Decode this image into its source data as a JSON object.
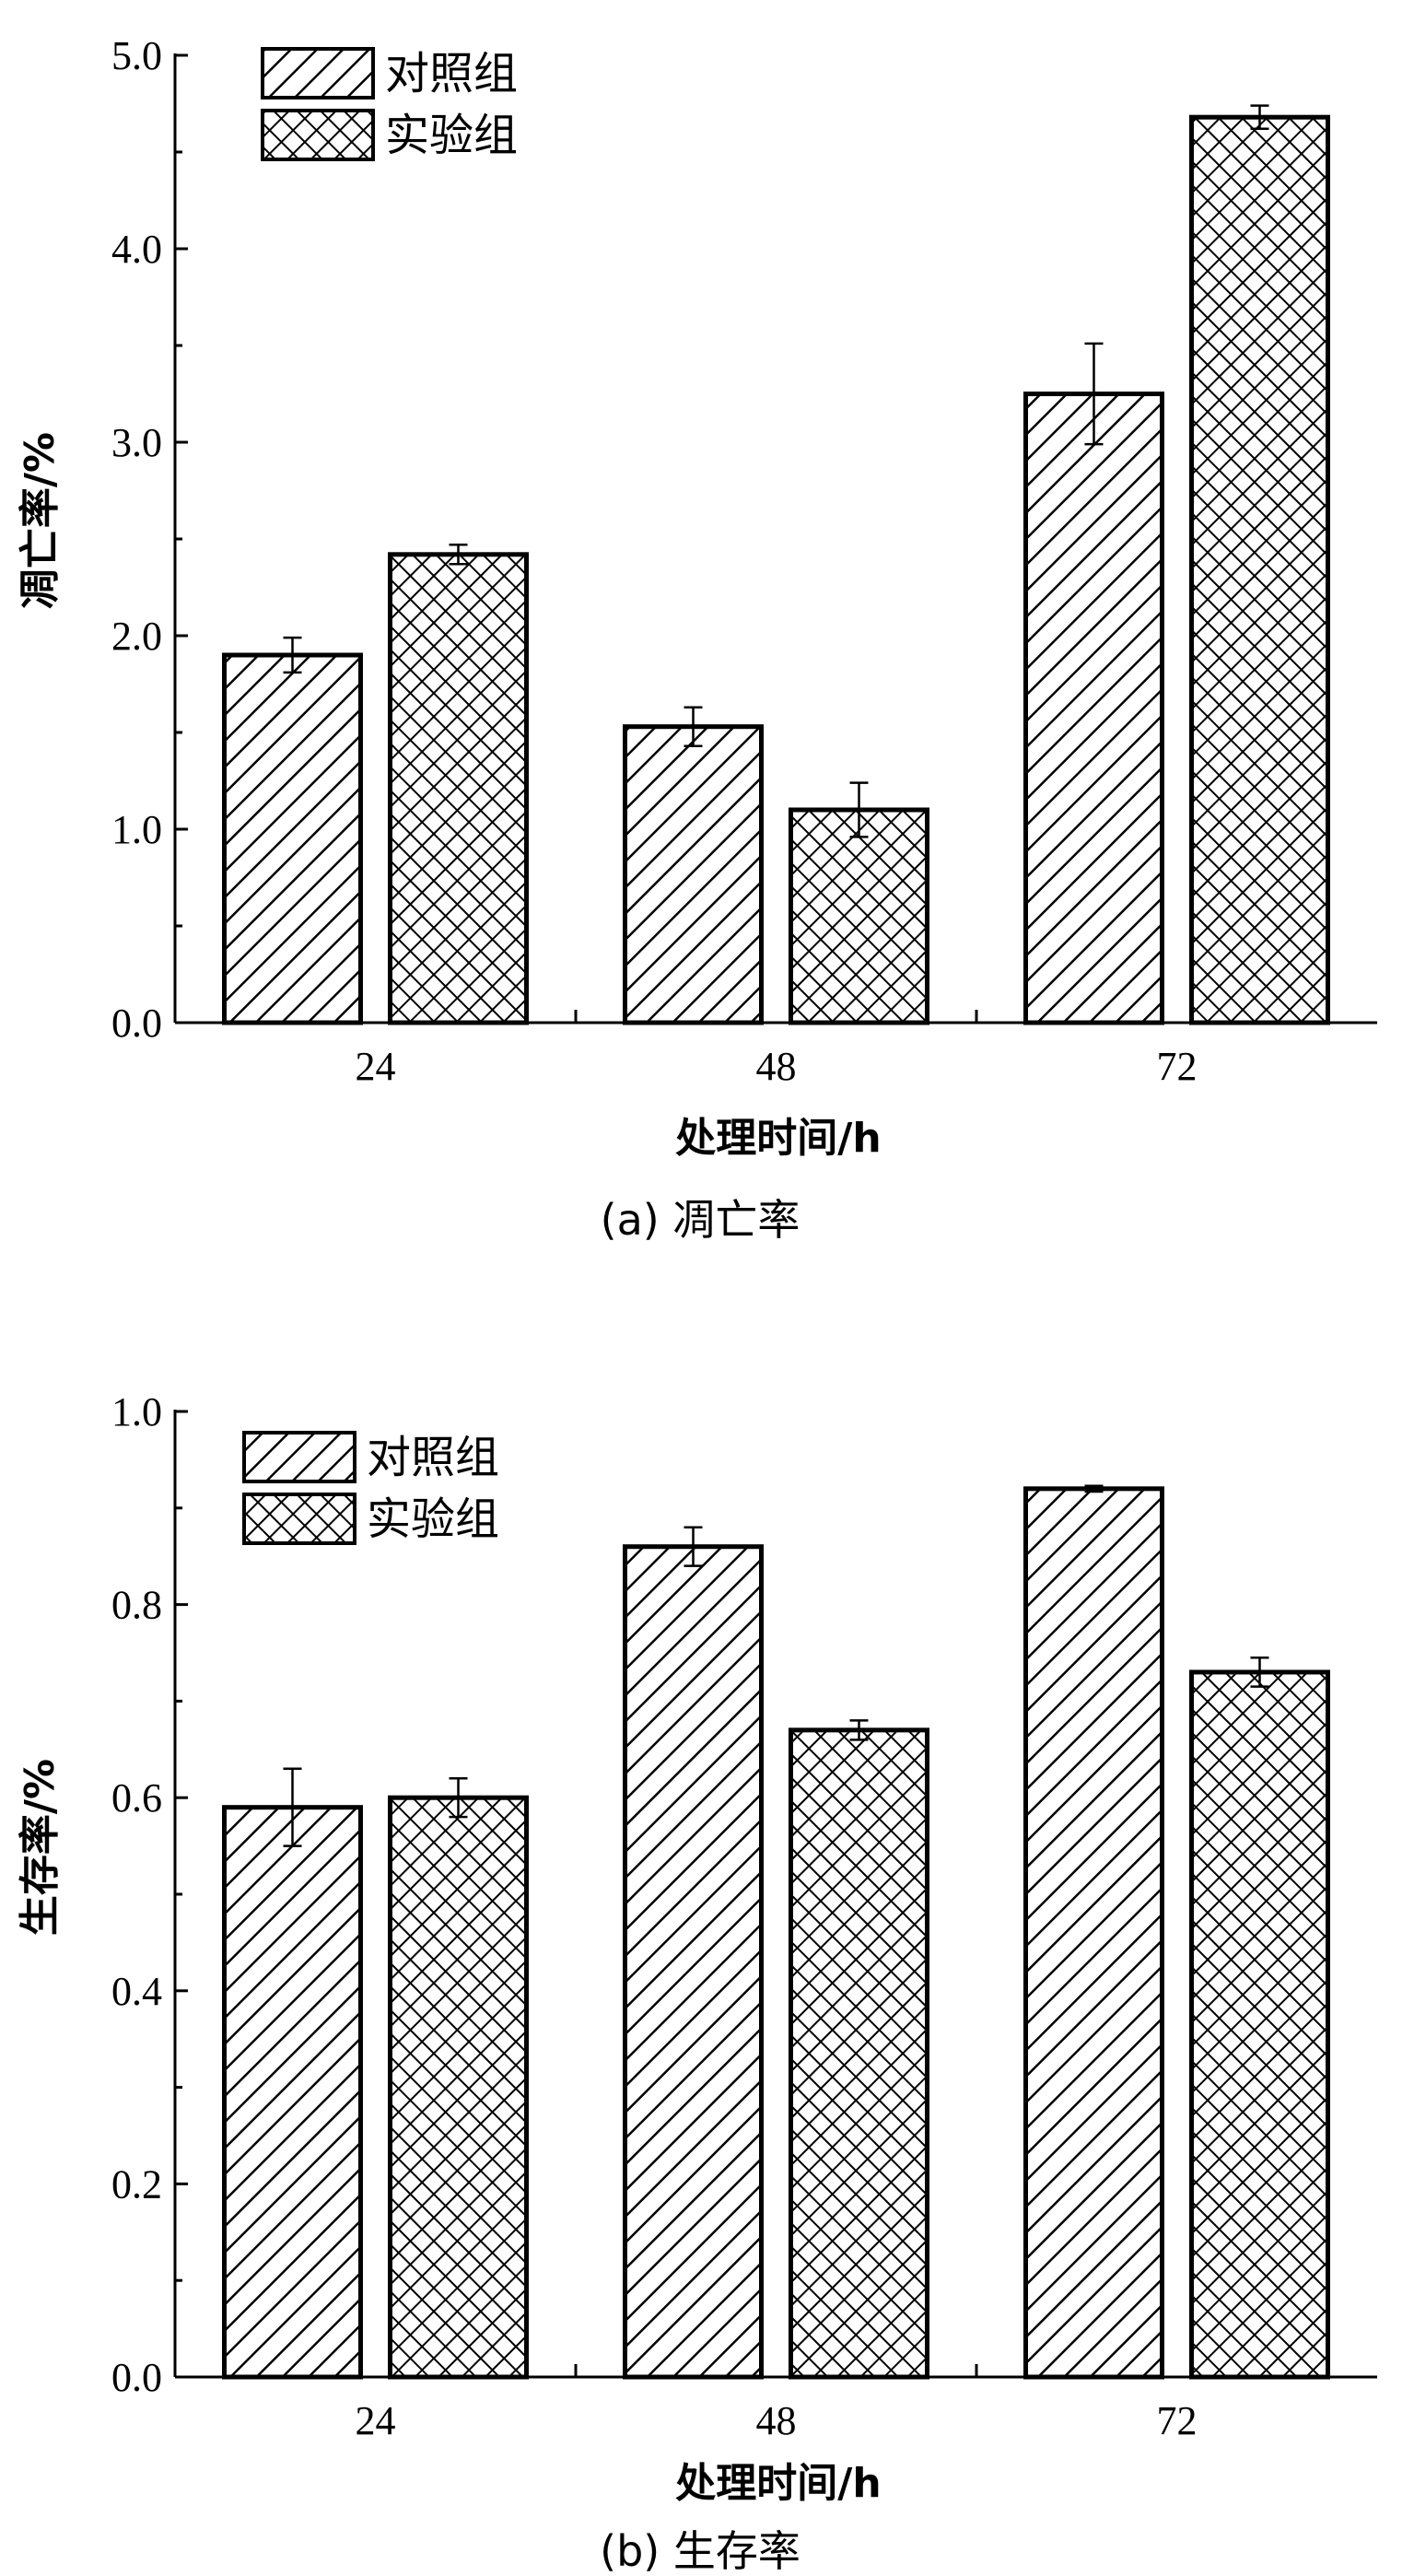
{
  "chart_data": [
    {
      "type": "bar",
      "caption": "(a) 凋亡率",
      "xlabel": "处理时间/h",
      "ylabel": "凋亡率/%",
      "categories": [
        "24",
        "48",
        "72"
      ],
      "ylim": [
        0,
        5
      ],
      "yticks": [
        "0.0",
        "1.0",
        "2.0",
        "3.0",
        "4.0",
        "5.0"
      ],
      "legend_position": "top-left",
      "series": [
        {
          "name": "对照组",
          "pattern": "diagonal-hatch",
          "values": [
            1.9,
            1.53,
            3.25
          ],
          "errors": [
            0.09,
            0.1,
            0.26
          ]
        },
        {
          "name": "实验组",
          "pattern": "crosshatch",
          "values": [
            2.42,
            1.1,
            4.68
          ],
          "errors": [
            0.05,
            0.14,
            0.06
          ]
        }
      ]
    },
    {
      "type": "bar",
      "caption": "(b) 生存率",
      "xlabel": "处理时间/h",
      "ylabel": "生存率/%",
      "categories": [
        "24",
        "48",
        "72"
      ],
      "ylim": [
        0,
        1
      ],
      "yticks": [
        "0.0",
        "0.2",
        "0.4",
        "0.6",
        "0.8",
        "1.0"
      ],
      "legend_position": "top-left",
      "series": [
        {
          "name": "对照组",
          "pattern": "diagonal-hatch",
          "values": [
            0.59,
            0.86,
            0.92
          ],
          "errors": [
            0.04,
            0.02,
            0.003
          ]
        },
        {
          "name": "实验组",
          "pattern": "crosshatch",
          "values": [
            0.6,
            0.67,
            0.73
          ],
          "errors": [
            0.02,
            0.01,
            0.015
          ]
        }
      ]
    }
  ]
}
